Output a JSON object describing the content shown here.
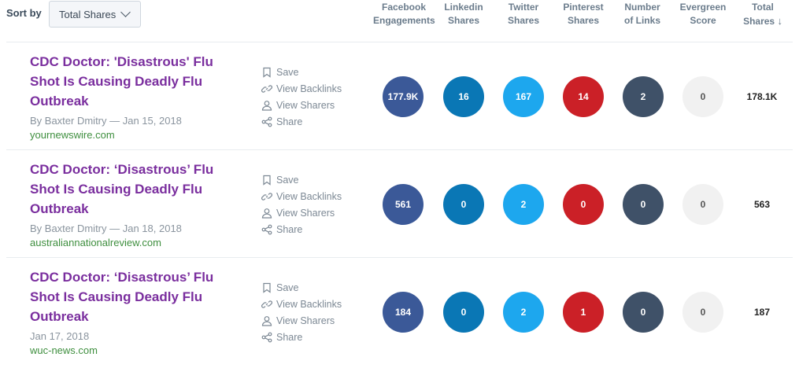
{
  "sort": {
    "label": "Sort by",
    "value": "Total Shares"
  },
  "columns": {
    "facebook": "Facebook Engagements",
    "linkedin": "Linkedin Shares",
    "twitter": "Twitter Shares",
    "pinterest": "Pinterest Shares",
    "links": "Number of Links",
    "evergreen": "Evergreen Score",
    "total": "Total Shares",
    "total_arrow": "↓"
  },
  "actions": {
    "save": "Save",
    "backlinks": "View Backlinks",
    "sharers": "View Sharers",
    "share": "Share"
  },
  "colors": {
    "facebook": "#3b5998",
    "linkedin": "#0a77b5",
    "twitter": "#1da7ee",
    "pinterest": "#cb2027",
    "links": "#3f5168",
    "evergreen": "#f1f1f1",
    "title": "#7a2e9e",
    "domain": "#3f8f3f"
  },
  "rows": [
    {
      "title": "CDC Doctor: 'Disastrous' Flu Shot Is Causing Deadly Flu Outbreak",
      "byline": "By Baxter Dmitry — Jan 15, 2018",
      "domain": "yournewswire.com",
      "facebook": "177.9K",
      "linkedin": "16",
      "twitter": "167",
      "pinterest": "14",
      "links": "2",
      "evergreen": "0",
      "total": "178.1K"
    },
    {
      "title": "CDC Doctor: ‘Disastrous’ Flu Shot Is Causing Deadly Flu Outbreak",
      "byline": "By Baxter Dmitry — Jan 18, 2018",
      "domain": "australiannationalreview.com",
      "facebook": "561",
      "linkedin": "0",
      "twitter": "2",
      "pinterest": "0",
      "links": "0",
      "evergreen": "0",
      "total": "563"
    },
    {
      "title": "CDC Doctor: ‘Disastrous’ Flu Shot Is Causing Deadly Flu Outbreak",
      "byline": "Jan 17, 2018",
      "domain": "wuc-news.com",
      "facebook": "184",
      "linkedin": "0",
      "twitter": "2",
      "pinterest": "1",
      "links": "0",
      "evergreen": "0",
      "total": "187"
    }
  ]
}
